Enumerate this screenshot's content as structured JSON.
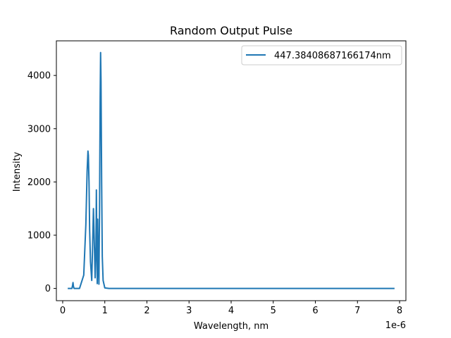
{
  "chart_data": {
    "type": "line",
    "title": "Random Output Pulse",
    "xlabel": "Wavelength, nm",
    "ylabel": "Intensity",
    "x_offset_text": "1e-6",
    "xlim": [
      -0.15,
      8.15
    ],
    "ylim": [
      -230,
      4650
    ],
    "xticks": [
      0,
      1,
      2,
      3,
      4,
      5,
      6,
      7,
      8
    ],
    "yticks": [
      0,
      1000,
      2000,
      3000,
      4000
    ],
    "grid": false,
    "legend_position": "top-right",
    "color": "#1f77b4",
    "series": [
      {
        "name": "447.38408687166174nm",
        "x": [
          0.12,
          0.22,
          0.235,
          0.245,
          0.255,
          0.27,
          0.4,
          0.5,
          0.55,
          0.58,
          0.6,
          0.61,
          0.625,
          0.64,
          0.66,
          0.69,
          0.71,
          0.73,
          0.75,
          0.77,
          0.79,
          0.8,
          0.81,
          0.82,
          0.83,
          0.845,
          0.86,
          0.875,
          0.89,
          0.9,
          0.91,
          0.925,
          0.94,
          0.96,
          1.0,
          1.1,
          2.0,
          4.0,
          6.0,
          7.88
        ],
        "y": [
          0,
          0,
          60,
          110,
          40,
          0,
          0,
          250,
          1200,
          2200,
          2580,
          2500,
          2000,
          1100,
          500,
          150,
          800,
          1500,
          900,
          200,
          800,
          1850,
          900,
          90,
          1300,
          500,
          80,
          1500,
          3600,
          4430,
          3900,
          2000,
          600,
          150,
          10,
          0,
          0,
          0,
          0,
          0
        ]
      }
    ]
  }
}
